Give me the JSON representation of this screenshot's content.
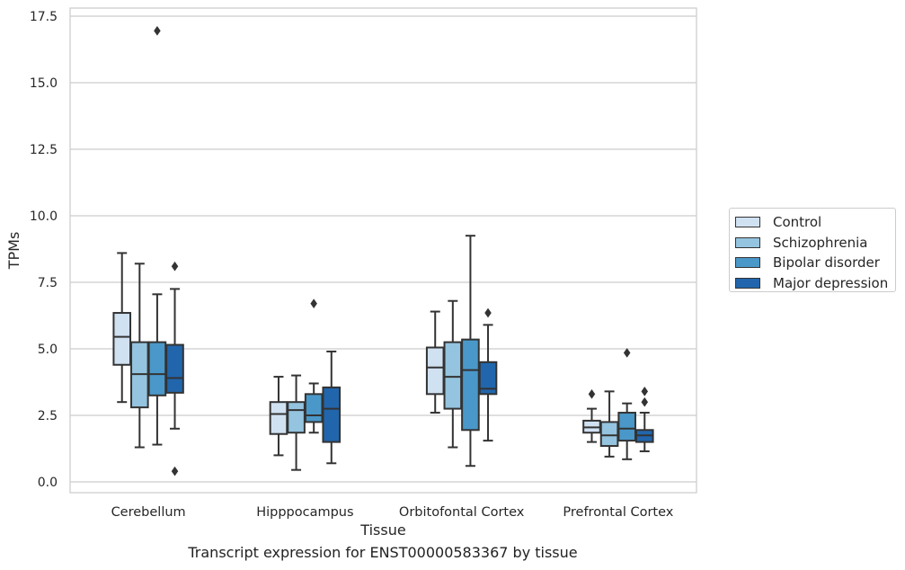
{
  "chart_data": {
    "type": "box",
    "title": "",
    "xlabel": "Tissue",
    "ylabel": "TPMs",
    "caption": "Transcript expression for ENST00000583367 by tissue",
    "ylim": [
      -0.4,
      17.7
    ],
    "yticks": [
      0.0,
      2.5,
      5.0,
      7.5,
      10.0,
      12.5,
      15.0,
      17.5
    ],
    "ytick_labels": [
      "0.0",
      "2.5",
      "5.0",
      "7.5",
      "10.0",
      "12.5",
      "15.0",
      "17.5"
    ],
    "grid": "horizontal",
    "legend_position": "right",
    "categories": [
      "Cerebellum",
      "Hipppocampus",
      "Orbitofontal Cortex",
      "Prefrontal Cortex"
    ],
    "series": [
      {
        "name": "Control",
        "color": "#d0e1f2",
        "boxes": [
          {
            "q1": 4.4,
            "median": 5.45,
            "q3": 6.35,
            "whisker_low": 3.0,
            "whisker_high": 8.6,
            "outliers": []
          },
          {
            "q1": 1.8,
            "median": 2.55,
            "q3": 3.0,
            "whisker_low": 1.0,
            "whisker_high": 3.95,
            "outliers": []
          },
          {
            "q1": 3.3,
            "median": 4.3,
            "q3": 5.05,
            "whisker_low": 2.6,
            "whisker_high": 6.4,
            "outliers": []
          },
          {
            "q1": 1.85,
            "median": 2.05,
            "q3": 2.3,
            "whisker_low": 1.5,
            "whisker_high": 2.75,
            "outliers": [
              3.3
            ]
          }
        ]
      },
      {
        "name": "Schizophrenia",
        "color": "#94c4df",
        "boxes": [
          {
            "q1": 2.8,
            "median": 4.05,
            "q3": 5.25,
            "whisker_low": 1.3,
            "whisker_high": 8.2,
            "outliers": []
          },
          {
            "q1": 1.85,
            "median": 2.7,
            "q3": 3.0,
            "whisker_low": 0.45,
            "whisker_high": 4.0,
            "outliers": []
          },
          {
            "q1": 2.75,
            "median": 3.95,
            "q3": 5.25,
            "whisker_low": 1.3,
            "whisker_high": 6.8,
            "outliers": []
          },
          {
            "q1": 1.35,
            "median": 1.75,
            "q3": 2.25,
            "whisker_low": 0.95,
            "whisker_high": 3.4,
            "outliers": []
          }
        ]
      },
      {
        "name": "Bipolar disorder",
        "color": "#4a98c9",
        "boxes": [
          {
            "q1": 3.25,
            "median": 4.05,
            "q3": 5.25,
            "whisker_low": 1.4,
            "whisker_high": 7.05,
            "outliers": [
              16.95
            ]
          },
          {
            "q1": 2.25,
            "median": 2.5,
            "q3": 3.3,
            "whisker_low": 1.85,
            "whisker_high": 3.7,
            "outliers": [
              6.7
            ]
          },
          {
            "q1": 1.95,
            "median": 4.2,
            "q3": 5.35,
            "whisker_low": 0.6,
            "whisker_high": 9.25,
            "outliers": []
          },
          {
            "q1": 1.55,
            "median": 2.0,
            "q3": 2.6,
            "whisker_low": 0.85,
            "whisker_high": 2.95,
            "outliers": [
              4.85
            ]
          }
        ]
      },
      {
        "name": "Major depression",
        "color": "#2166ac",
        "boxes": [
          {
            "q1": 3.35,
            "median": 3.9,
            "q3": 5.15,
            "whisker_low": 2.0,
            "whisker_high": 7.25,
            "outliers": [
              8.1,
              0.4
            ]
          },
          {
            "q1": 1.5,
            "median": 2.75,
            "q3": 3.55,
            "whisker_low": 0.7,
            "whisker_high": 4.9,
            "outliers": []
          },
          {
            "q1": 3.3,
            "median": 3.5,
            "q3": 4.5,
            "whisker_low": 1.55,
            "whisker_high": 5.9,
            "outliers": [
              6.35
            ]
          },
          {
            "q1": 1.5,
            "median": 1.75,
            "q3": 1.95,
            "whisker_low": 1.15,
            "whisker_high": 2.6,
            "outliers": [
              3.4,
              3.0
            ]
          }
        ]
      }
    ]
  }
}
